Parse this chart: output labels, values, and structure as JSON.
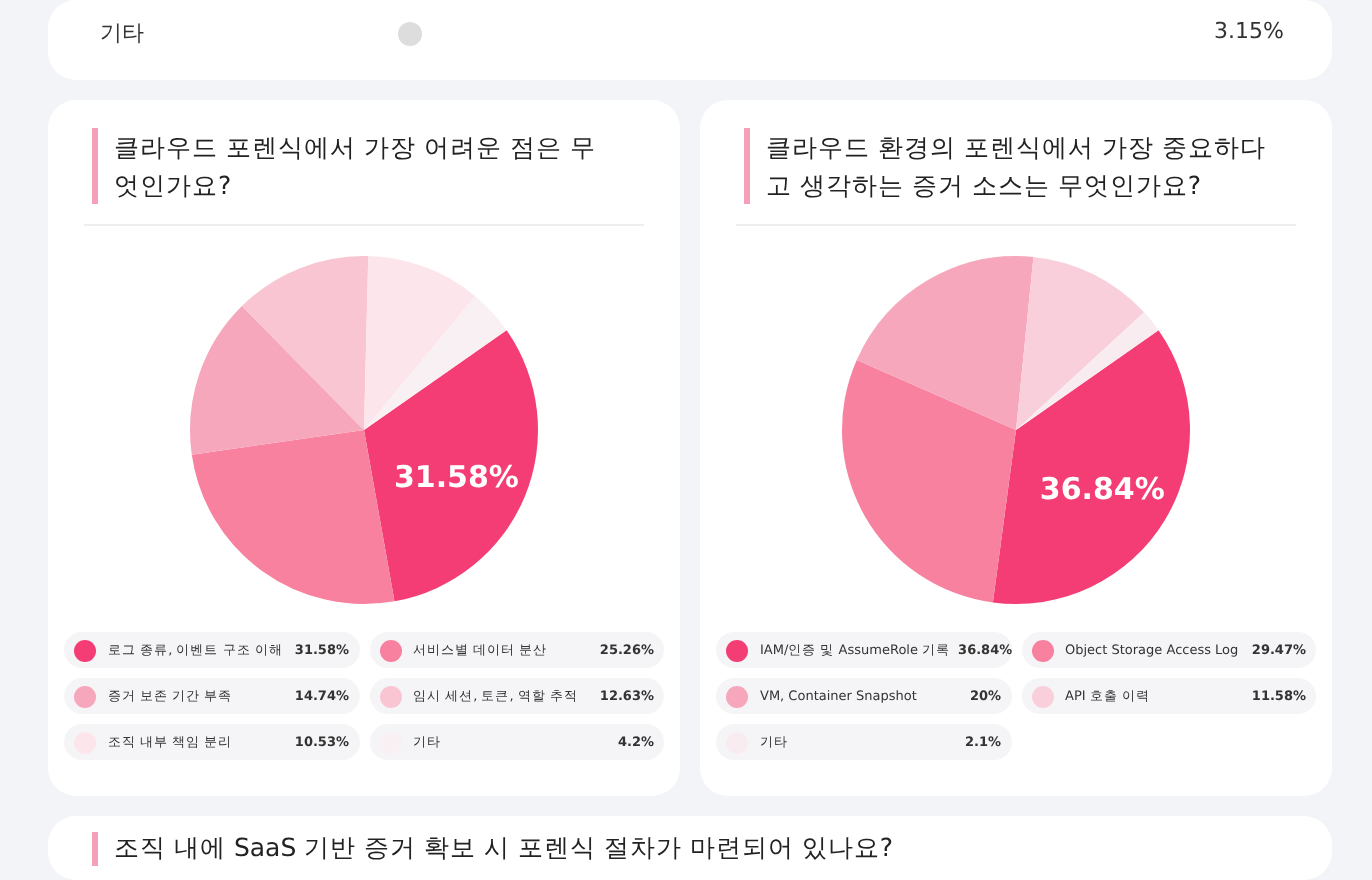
{
  "chart_data": [
    {
      "type": "other",
      "annotations": [
        "기타",
        "3.15%"
      ]
    },
    {
      "type": "pie",
      "title": "클라우드 포렌식에서 가장 어려운 점은 무엇인가요?",
      "categories": [
        "로그 종류, 이벤트 구조 이해",
        "서비스별 데이터 분산",
        "증거 보존 기간 부족",
        "임시 세션, 토큰, 역할 추적",
        "조직 내부 책임 분리",
        "기타"
      ],
      "values": [
        31.58,
        25.26,
        14.74,
        12.63,
        10.53,
        4.2
      ],
      "colors": [
        "#f43d74",
        "#f7819f",
        "#f7a7bc",
        "#f9c5d3",
        "#fde5ec",
        "#f9f0f3"
      ],
      "value_labels": [
        "31.58%",
        "25.26%",
        "14.74%",
        "12.63%",
        "10.53%",
        "4.2%"
      ],
      "legend": "bottom"
    },
    {
      "type": "pie",
      "title": "클라우드 환경의 포렌식에서 가장 중요하다고 생각하는 증거 소스는 무엇인가요?",
      "categories": [
        "IAM/인증 및 AssumeRole 기록",
        "Object Storage Access Log",
        "VM, Container Snapshot",
        "API 호출 이력",
        "기타"
      ],
      "values": [
        36.84,
        29.47,
        20,
        11.58,
        2.1
      ],
      "colors": [
        "#f43d74",
        "#f7819f",
        "#f7a7bc",
        "#f9cfdb",
        "#f8ecf0"
      ],
      "value_labels": [
        "36.84%",
        "29.47%",
        "20%",
        "11.58%",
        "2.1%"
      ],
      "legend": "bottom"
    },
    {
      "type": "other",
      "title": "조직 내에 SaaS 기반 증거 확보 시 포렌식 절차가 마련되어 있나요?"
    }
  ]
}
